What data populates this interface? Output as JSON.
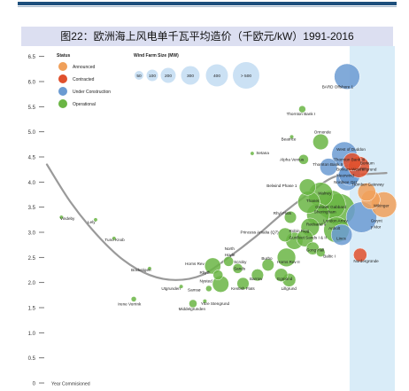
{
  "title": "图22：欧洲海上风电单千瓦平均造价（千欧元/kW）1991-2016",
  "colors": {
    "announced": "#f0a05a",
    "contracted": "#e0502d",
    "under_construction": "#6b9bd2",
    "operational": "#6ab544",
    "highlight_band": "#d9ecf8",
    "trend": "#9a9a9a"
  },
  "chart_data": {
    "type": "scatter",
    "ylim": [
      0,
      6.6
    ],
    "xlim": [
      1990,
      2016.5
    ],
    "y_ticks": [
      "0",
      "0.5",
      "1.0",
      "1.5",
      "2.0",
      "2.5",
      "3.0",
      "3.5",
      "4.0",
      "4.5",
      "5.0",
      "5.5",
      "6.0",
      "6.5"
    ],
    "x_axis_label": "Year Commisioned",
    "legend_status": {
      "title": "Status",
      "items": [
        {
          "key": "announced",
          "label": "Announced"
        },
        {
          "key": "contracted",
          "label": "Contracted"
        },
        {
          "key": "under_construction",
          "label": "Under Construction"
        },
        {
          "key": "operational",
          "label": "Operational"
        }
      ]
    },
    "legend_size": {
      "title": "Wind Farm Size (MW)",
      "items": [
        {
          "label": "50",
          "mw": 50
        },
        {
          "label": "100",
          "mw": 100
        },
        {
          "label": "200",
          "mw": 200
        },
        {
          "label": "300",
          "mw": 300
        },
        {
          "label": "400",
          "mw": 400
        },
        {
          "label": "> 500",
          "mw": 500
        }
      ]
    },
    "highlight_from_year": 2013.2,
    "trend_curve": [
      [
        1990.2,
        4.35
      ],
      [
        1992,
        3.6
      ],
      [
        1994,
        2.95
      ],
      [
        1996,
        2.45
      ],
      [
        1998,
        2.15
      ],
      [
        2000,
        2.05
      ],
      [
        2002,
        2.15
      ],
      [
        2004,
        2.5
      ],
      [
        2006,
        2.9
      ],
      [
        2008,
        3.35
      ],
      [
        2010,
        3.75
      ],
      [
        2012,
        4.1
      ],
      [
        2014,
        4.15
      ],
      [
        2016,
        4.18
      ]
    ],
    "points": [
      {
        "name": "Vindeby",
        "year": 1991.3,
        "cost": 3.3,
        "mw": 5,
        "status": "operational"
      },
      {
        "name": "Lely",
        "year": 1993.9,
        "cost": 3.25,
        "mw": 5,
        "status": "operational"
      },
      {
        "name": "Tuno Knob",
        "year": 1995.3,
        "cost": 2.88,
        "mw": 5,
        "status": "operational"
      },
      {
        "name": "Bockstigen",
        "year": 1998.0,
        "cost": 2.28,
        "mw": 5,
        "status": "operational"
      },
      {
        "name": "Irene Vorrink",
        "year": 1996.8,
        "cost": 1.67,
        "mw": 17,
        "status": "operational"
      },
      {
        "name": "Utgrunden",
        "year": 2000.4,
        "cost": 1.92,
        "mw": 10,
        "status": "operational"
      },
      {
        "name": "Middelgrunden",
        "year": 2001.3,
        "cost": 1.58,
        "mw": 40,
        "status": "operational"
      },
      {
        "name": "Yttre Stengrund",
        "year": 2002.2,
        "cost": 1.63,
        "mw": 10,
        "status": "operational"
      },
      {
        "name": "Samsø",
        "year": 2002.5,
        "cost": 1.88,
        "mw": 23,
        "status": "operational"
      },
      {
        "name": "Nysted",
        "year": 2003.4,
        "cost": 1.97,
        "mw": 166,
        "status": "operational"
      },
      {
        "name": "Rhyth",
        "year": 2003.2,
        "cost": 2.15,
        "mw": 60,
        "status": "operational"
      },
      {
        "name": "Horns Rev",
        "year": 2002.8,
        "cost": 2.33,
        "mw": 160,
        "status": "operational"
      },
      {
        "name": "North Hoyle",
        "year": 2004.0,
        "cost": 2.42,
        "mw": 60,
        "status": "operational"
      },
      {
        "name": "Scroby Sands",
        "year": 2004.7,
        "cost": 2.28,
        "mw": 60,
        "status": "operational"
      },
      {
        "name": "Kentish Flats",
        "year": 2005.1,
        "cost": 1.98,
        "mw": 90,
        "status": "operational"
      },
      {
        "name": "Barrow",
        "year": 2006.2,
        "cost": 2.15,
        "mw": 90,
        "status": "operational"
      },
      {
        "name": "Burbo",
        "year": 2007.0,
        "cost": 2.35,
        "mw": 90,
        "status": "operational"
      },
      {
        "name": "Horns Rev II",
        "year": 2008.4,
        "cost": 2.5,
        "mw": 209,
        "status": "operational"
      },
      {
        "name": "Egmond",
        "year": 2008.0,
        "cost": 2.15,
        "mw": 108,
        "status": "operational"
      },
      {
        "name": "Lillgrund",
        "year": 2008.6,
        "cost": 2.05,
        "mw": 110,
        "status": "operational"
      },
      {
        "name": "Robin Rigg",
        "year": 2009.0,
        "cost": 2.83,
        "mw": 180,
        "status": "operational"
      },
      {
        "name": "Princess Amalia (Q7)",
        "year": 2008.3,
        "cost": 2.95,
        "mw": 120,
        "status": "operational"
      },
      {
        "name": "Gunfleet Sands I & II",
        "year": 2009.8,
        "cost": 2.88,
        "mw": 172,
        "status": "operational"
      },
      {
        "name": "Gong Hall",
        "year": 2010.4,
        "cost": 2.68,
        "mw": 100,
        "status": "operational"
      },
      {
        "name": "Baltic I",
        "year": 2011.0,
        "cost": 2.6,
        "mw": 48,
        "status": "operational"
      },
      {
        "name": "Rhyl Flats",
        "year": 2008.7,
        "cost": 3.3,
        "mw": 90,
        "status": "operational"
      },
      {
        "name": "Rødsand II",
        "year": 2010.2,
        "cost": 3.1,
        "mw": 207,
        "status": "operational"
      },
      {
        "name": "Sheringham",
        "year": 2010.8,
        "cost": 3.35,
        "mw": 317,
        "status": "operational"
      },
      {
        "name": "Thanet",
        "year": 2010.1,
        "cost": 3.6,
        "mw": 300,
        "status": "operational"
      },
      {
        "name": "Walney",
        "year": 2011.0,
        "cost": 3.75,
        "mw": 367,
        "status": "operational"
      },
      {
        "name": "Greater Gabbard",
        "year": 2011.8,
        "cost": 3.55,
        "mw": 504,
        "status": "operational"
      },
      {
        "name": "London Array",
        "year": 2012.4,
        "cost": 3.45,
        "mw": 630,
        "status": "operational"
      },
      {
        "name": "Anholt",
        "year": 2012.2,
        "cost": 3.05,
        "mw": 400,
        "status": "operational"
      },
      {
        "name": "Lincs",
        "year": 2012.6,
        "cost": 2.95,
        "mw": 270,
        "status": "under_construction"
      },
      {
        "name": "Belwind Phase 1",
        "year": 2010.0,
        "cost": 3.9,
        "mw": 165,
        "status": "operational"
      },
      {
        "name": "Alpha Ventus",
        "year": 2009.7,
        "cost": 4.45,
        "mw": 60,
        "status": "operational"
      },
      {
        "name": "Thornton Bank II",
        "year": 2011.6,
        "cost": 4.3,
        "mw": 184,
        "status": "under_construction"
      },
      {
        "name": "Ormonde",
        "year": 2011.0,
        "cost": 4.8,
        "mw": 150,
        "status": "operational"
      },
      {
        "name": "Beatrice",
        "year": 2008.8,
        "cost": 4.9,
        "mw": 10,
        "status": "operational"
      },
      {
        "name": "Thornton Bank I",
        "year": 2009.6,
        "cost": 5.45,
        "mw": 30,
        "status": "operational"
      },
      {
        "name": "Setana",
        "year": 2005.8,
        "cost": 4.57,
        "mw": 2,
        "status": "operational"
      },
      {
        "name": "West of Duddon",
        "year": 2012.8,
        "cost": 4.55,
        "mw": 389,
        "status": "under_construction"
      },
      {
        "name": "Borkum Riffgrund",
        "year": 2013.9,
        "cost": 4.3,
        "mw": 277,
        "status": "contracted"
      },
      {
        "name": "Borkum West II",
        "year": 2013.4,
        "cost": 4.4,
        "mw": 200,
        "status": "contracted"
      },
      {
        "name": "Meerwind",
        "year": 2013.2,
        "cost": 4.15,
        "mw": 288,
        "status": "under_construction"
      },
      {
        "name": "Nordsee Ost",
        "year": 2013.0,
        "cost": 4.05,
        "mw": 295,
        "status": "under_construction"
      },
      {
        "name": "Thanet Gateway",
        "year": 2014.5,
        "cost": 3.8,
        "mw": 200,
        "status": "announced"
      },
      {
        "name": "Humber Gateway",
        "year": 2014.8,
        "cost": 3.65,
        "mw": 219,
        "status": "announced"
      },
      {
        "name": "Wikinger",
        "year": 2015.8,
        "cost": 3.55,
        "mw": 400,
        "status": "announced"
      },
      {
        "name": "Gwynt y Mor",
        "year": 2014.1,
        "cost": 3.3,
        "mw": 576,
        "status": "under_construction"
      },
      {
        "name": "Nordergründe",
        "year": 2014.0,
        "cost": 2.55,
        "mw": 111,
        "status": "contracted"
      },
      {
        "name": "BARD Offshore 1",
        "year": 2013.0,
        "cost": 6.1,
        "mw": 400,
        "status": "under_construction"
      }
    ],
    "labels": [
      {
        "text": "Vindeby",
        "year": 1991.2,
        "cost": 3.25,
        "anchor": "start"
      },
      {
        "text": "Lely",
        "year": 1993.3,
        "cost": 3.18,
        "anchor": "start"
      },
      {
        "text": "Tuno Knob",
        "year": 1994.6,
        "cost": 2.82,
        "anchor": "start"
      },
      {
        "text": "Bockstigen",
        "year": 1996.6,
        "cost": 2.22,
        "anchor": "start"
      },
      {
        "text": "Irene Vorrink",
        "year": 1995.6,
        "cost": 1.54,
        "anchor": "start"
      },
      {
        "text": "Utgrunden",
        "year": 1998.9,
        "cost": 1.85,
        "anchor": "start"
      },
      {
        "text": "Middelgrunden",
        "year": 2000.2,
        "cost": 1.45,
        "anchor": "start"
      },
      {
        "text": "Yttre Stengrund",
        "year": 2001.9,
        "cost": 1.55,
        "anchor": "start"
      },
      {
        "text": "Samsø",
        "year": 2000.9,
        "cost": 1.83,
        "anchor": "start"
      },
      {
        "text": "Nysted",
        "year": 2001.8,
        "cost": 2.0,
        "anchor": "start"
      },
      {
        "text": "Rhyth",
        "year": 2001.8,
        "cost": 2.17,
        "anchor": "start"
      },
      {
        "text": "Horns Rev",
        "year": 2000.7,
        "cost": 2.35,
        "anchor": "start"
      },
      {
        "text": "North",
        "year": 2003.7,
        "cost": 2.65,
        "anchor": "start"
      },
      {
        "text": "Hoyle",
        "year": 2003.7,
        "cost": 2.52,
        "anchor": "start"
      },
      {
        "text": "Scroby",
        "year": 2004.4,
        "cost": 2.38,
        "anchor": "start"
      },
      {
        "text": "Sands",
        "year": 2004.4,
        "cost": 2.25,
        "anchor": "start"
      },
      {
        "text": "Kentish Flats",
        "year": 2004.2,
        "cost": 1.85,
        "anchor": "start"
      },
      {
        "text": "Barrow",
        "year": 2005.6,
        "cost": 2.05,
        "anchor": "start"
      },
      {
        "text": "Burbo",
        "year": 2006.5,
        "cost": 2.45,
        "anchor": "start"
      },
      {
        "text": "Horns Rev II",
        "year": 2007.7,
        "cost": 2.38,
        "anchor": "start"
      },
      {
        "text": "Egmond",
        "year": 2007.7,
        "cost": 2.05,
        "anchor": "start"
      },
      {
        "text": "Lillgrund",
        "year": 2008.0,
        "cost": 1.85,
        "anchor": "start"
      },
      {
        "text": "Robin Rigg",
        "year": 2008.6,
        "cost": 3.0,
        "anchor": "start"
      },
      {
        "text": "Princess Amalia (Q7)",
        "year": 2004.9,
        "cost": 2.97,
        "anchor": "start"
      },
      {
        "text": "Gunfleet Sands I & II",
        "year": 2008.6,
        "cost": 2.87,
        "anchor": "start"
      },
      {
        "text": "Gong Hall",
        "year": 2009.9,
        "cost": 2.62,
        "anchor": "start"
      },
      {
        "text": "Baltic I",
        "year": 2011.2,
        "cost": 2.5,
        "anchor": "start"
      },
      {
        "text": "Rhyl Flats",
        "year": 2007.4,
        "cost": 3.35,
        "anchor": "start"
      },
      {
        "text": "Rødsand II",
        "year": 2009.9,
        "cost": 3.13,
        "anchor": "start"
      },
      {
        "text": "Sheringham",
        "year": 2010.5,
        "cost": 3.38,
        "anchor": "start"
      },
      {
        "text": "Thanet",
        "year": 2009.9,
        "cost": 3.6,
        "anchor": "start"
      },
      {
        "text": "Walney",
        "year": 2010.8,
        "cost": 3.75,
        "anchor": "start"
      },
      {
        "text": "Greater Gabbard",
        "year": 2010.6,
        "cost": 3.48,
        "anchor": "start"
      },
      {
        "text": "London Array",
        "year": 2011.2,
        "cost": 3.2,
        "anchor": "start"
      },
      {
        "text": "Anholt",
        "year": 2011.6,
        "cost": 3.05,
        "anchor": "start"
      },
      {
        "text": "Lincs",
        "year": 2012.2,
        "cost": 2.85,
        "anchor": "start"
      },
      {
        "text": "Belwind Phase 1",
        "year": 2006.9,
        "cost": 3.9,
        "anchor": "start"
      },
      {
        "text": "Alpha Ventus",
        "year": 2007.9,
        "cost": 4.42,
        "anchor": "start"
      },
      {
        "text": "Thornton Bank II",
        "year": 2010.4,
        "cost": 4.32,
        "anchor": "start"
      },
      {
        "text": "Ormonde",
        "year": 2010.5,
        "cost": 4.97,
        "anchor": "start"
      },
      {
        "text": "Beatrice",
        "year": 2008.0,
        "cost": 4.83,
        "anchor": "start"
      },
      {
        "text": "Thornton Bank I",
        "year": 2008.4,
        "cost": 5.33,
        "anchor": "start"
      },
      {
        "text": "Setana",
        "year": 2006.1,
        "cost": 4.55,
        "anchor": "start"
      },
      {
        "text": "West of Duddon",
        "year": 2012.2,
        "cost": 4.62,
        "anchor": "start"
      },
      {
        "text": "Thornton Bank III",
        "year": 2012.0,
        "cost": 4.42,
        "anchor": "start"
      },
      {
        "text": "Borkum",
        "year": 2014.0,
        "cost": 4.35,
        "anchor": "start"
      },
      {
        "text": "Riffgrund",
        "year": 2014.0,
        "cost": 4.23,
        "anchor": "start"
      },
      {
        "text": "Borkum West II",
        "year": 2012.2,
        "cost": 4.23,
        "anchor": "start"
      },
      {
        "text": "Meerwind",
        "year": 2012.2,
        "cost": 4.1,
        "anchor": "start"
      },
      {
        "text": "Nordsee Ost",
        "year": 2012.0,
        "cost": 3.97,
        "anchor": "start"
      },
      {
        "text": "Humber Gateway",
        "year": 2013.4,
        "cost": 3.93,
        "anchor": "start"
      },
      {
        "text": "Wikinger",
        "year": 2015.0,
        "cost": 3.5,
        "anchor": "start"
      },
      {
        "text": "Gwynt",
        "year": 2014.8,
        "cost": 3.2,
        "anchor": "start"
      },
      {
        "text": "y Mor",
        "year": 2014.8,
        "cost": 3.08,
        "anchor": "start"
      },
      {
        "text": "Nordergründe",
        "year": 2013.5,
        "cost": 2.4,
        "anchor": "start"
      },
      {
        "text": "BARD Offshore 1",
        "year": 2011.1,
        "cost": 5.87,
        "anchor": "start"
      }
    ]
  }
}
